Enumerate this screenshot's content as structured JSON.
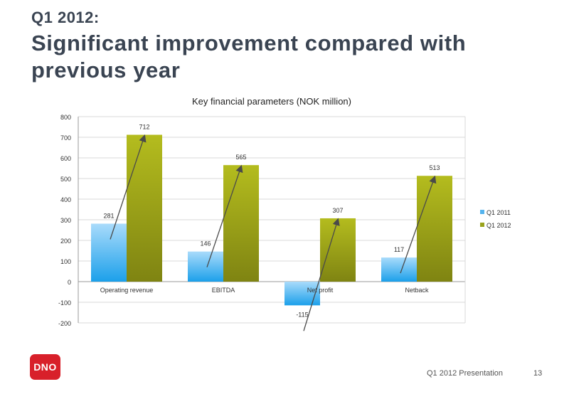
{
  "slide": {
    "supertitle": "Q1 2012:",
    "headline": "Significant improvement compared with previous year",
    "footer_text": "Q1 2012 Presentation",
    "page_number": "13",
    "logo_text": "DNO"
  },
  "chart_data": {
    "type": "bar",
    "title": "Key financial parameters (NOK million)",
    "categories": [
      "Operating revenue",
      "EBITDA",
      "Net profit",
      "Netback"
    ],
    "series": [
      {
        "name": "Q1 2011",
        "values": [
          281,
          146,
          -115,
          117
        ],
        "color": "#55b4ee"
      },
      {
        "name": "Q1 2012",
        "values": [
          712,
          565,
          307,
          513
        ],
        "color": "#9aa31c"
      }
    ],
    "ylim": [
      -200,
      800
    ],
    "yticks": [
      -200,
      -100,
      0,
      100,
      200,
      300,
      400,
      500,
      600,
      700,
      800
    ],
    "grid": true,
    "legend": "right",
    "xlabel": "",
    "ylabel": ""
  }
}
